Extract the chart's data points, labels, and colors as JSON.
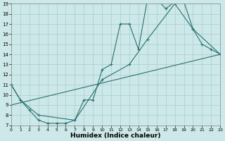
{
  "title": "",
  "xlabel": "Humidex (Indice chaleur)",
  "xlim": [
    0,
    23
  ],
  "ylim": [
    7,
    19
  ],
  "xticks": [
    0,
    1,
    2,
    3,
    4,
    5,
    6,
    7,
    8,
    9,
    10,
    11,
    12,
    13,
    14,
    15,
    16,
    17,
    18,
    19,
    20,
    21,
    22,
    23
  ],
  "yticks": [
    7,
    8,
    9,
    10,
    11,
    12,
    13,
    14,
    15,
    16,
    17,
    18,
    19
  ],
  "background_color": "#cde8e8",
  "grid_color": "#a8cccc",
  "line_color": "#2a7070",
  "line1_x": [
    0,
    1,
    2,
    3,
    4,
    5,
    6,
    7,
    8,
    9,
    10,
    11,
    12,
    13,
    14,
    15,
    16,
    17,
    18,
    19,
    20,
    21,
    22,
    23
  ],
  "line1_y": [
    11,
    9.5,
    8.5,
    7.5,
    7.2,
    7.2,
    7.2,
    7.5,
    9.5,
    9.5,
    12.5,
    13,
    17,
    17,
    14.5,
    19.5,
    19.5,
    18.5,
    19.2,
    19.2,
    16.5,
    15,
    14.5,
    14
  ],
  "line2_x": [
    0,
    1,
    3,
    7,
    10,
    13,
    15,
    18,
    20,
    23
  ],
  "line2_y": [
    11,
    9.5,
    8,
    7.5,
    11.5,
    13,
    15.5,
    19,
    16.5,
    14
  ],
  "line3_x": [
    0,
    23
  ],
  "line3_y": [
    9,
    14
  ],
  "figsize": [
    3.2,
    2.0
  ],
  "dpi": 100
}
